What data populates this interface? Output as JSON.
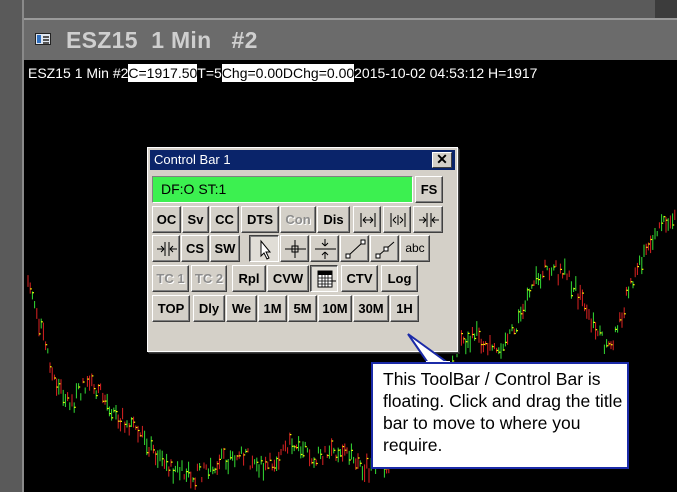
{
  "window": {
    "title": "ESZ15  1 Min   #2"
  },
  "info_bar": {
    "symbol": "ESZ15  1 Min   #2 ",
    "close": "C=1917.50",
    "ticks": " T=5 ",
    "change": "Chg=0.00",
    "daily_change": "DChg=0.00",
    "timestamp": " 2015-10-02 04:53:12 H=1917"
  },
  "control_bar": {
    "title": "Control Bar 1",
    "close_glyph": "✕",
    "status": "DF:O  ST:1",
    "fs_label": "FS",
    "row1": [
      "OC",
      "Sv",
      "CC",
      "DTS",
      "Con",
      "Dis"
    ],
    "row2": [
      "CS",
      "SW",
      "abc"
    ],
    "row3": [
      "TC 1",
      "TC 2",
      "Rpl",
      "CVW",
      "CTV",
      "Log"
    ],
    "row4": [
      "TOP",
      "Dly",
      "We",
      "1M",
      "5M",
      "10M",
      "30M",
      "1H"
    ]
  },
  "icons": {
    "expand_h": "expand-horizontal-icon",
    "expand_both": "expand-both-icon",
    "compress": "compress-horizontal-icon",
    "compress2": "compress-left-icon",
    "pointer": "arrow-pointer-icon",
    "crosshair": "crosshair-icon",
    "vertical_split": "vertical-split-icon",
    "trendline": "trendline-icon",
    "ray": "ray-icon",
    "calendar": "calendar-icon"
  },
  "tooltip": {
    "text": "This ToolBar / Control Bar is floating. Click and drag the title bar to move to where you require."
  },
  "colors": {
    "up_bar": "#33dd33",
    "down_bar": "#dd2222",
    "close_tick": "#ffff00",
    "status_green": "#3cf050",
    "titlebar_blue": "#0a246a",
    "tooltip_border": "#1b2aa8"
  }
}
